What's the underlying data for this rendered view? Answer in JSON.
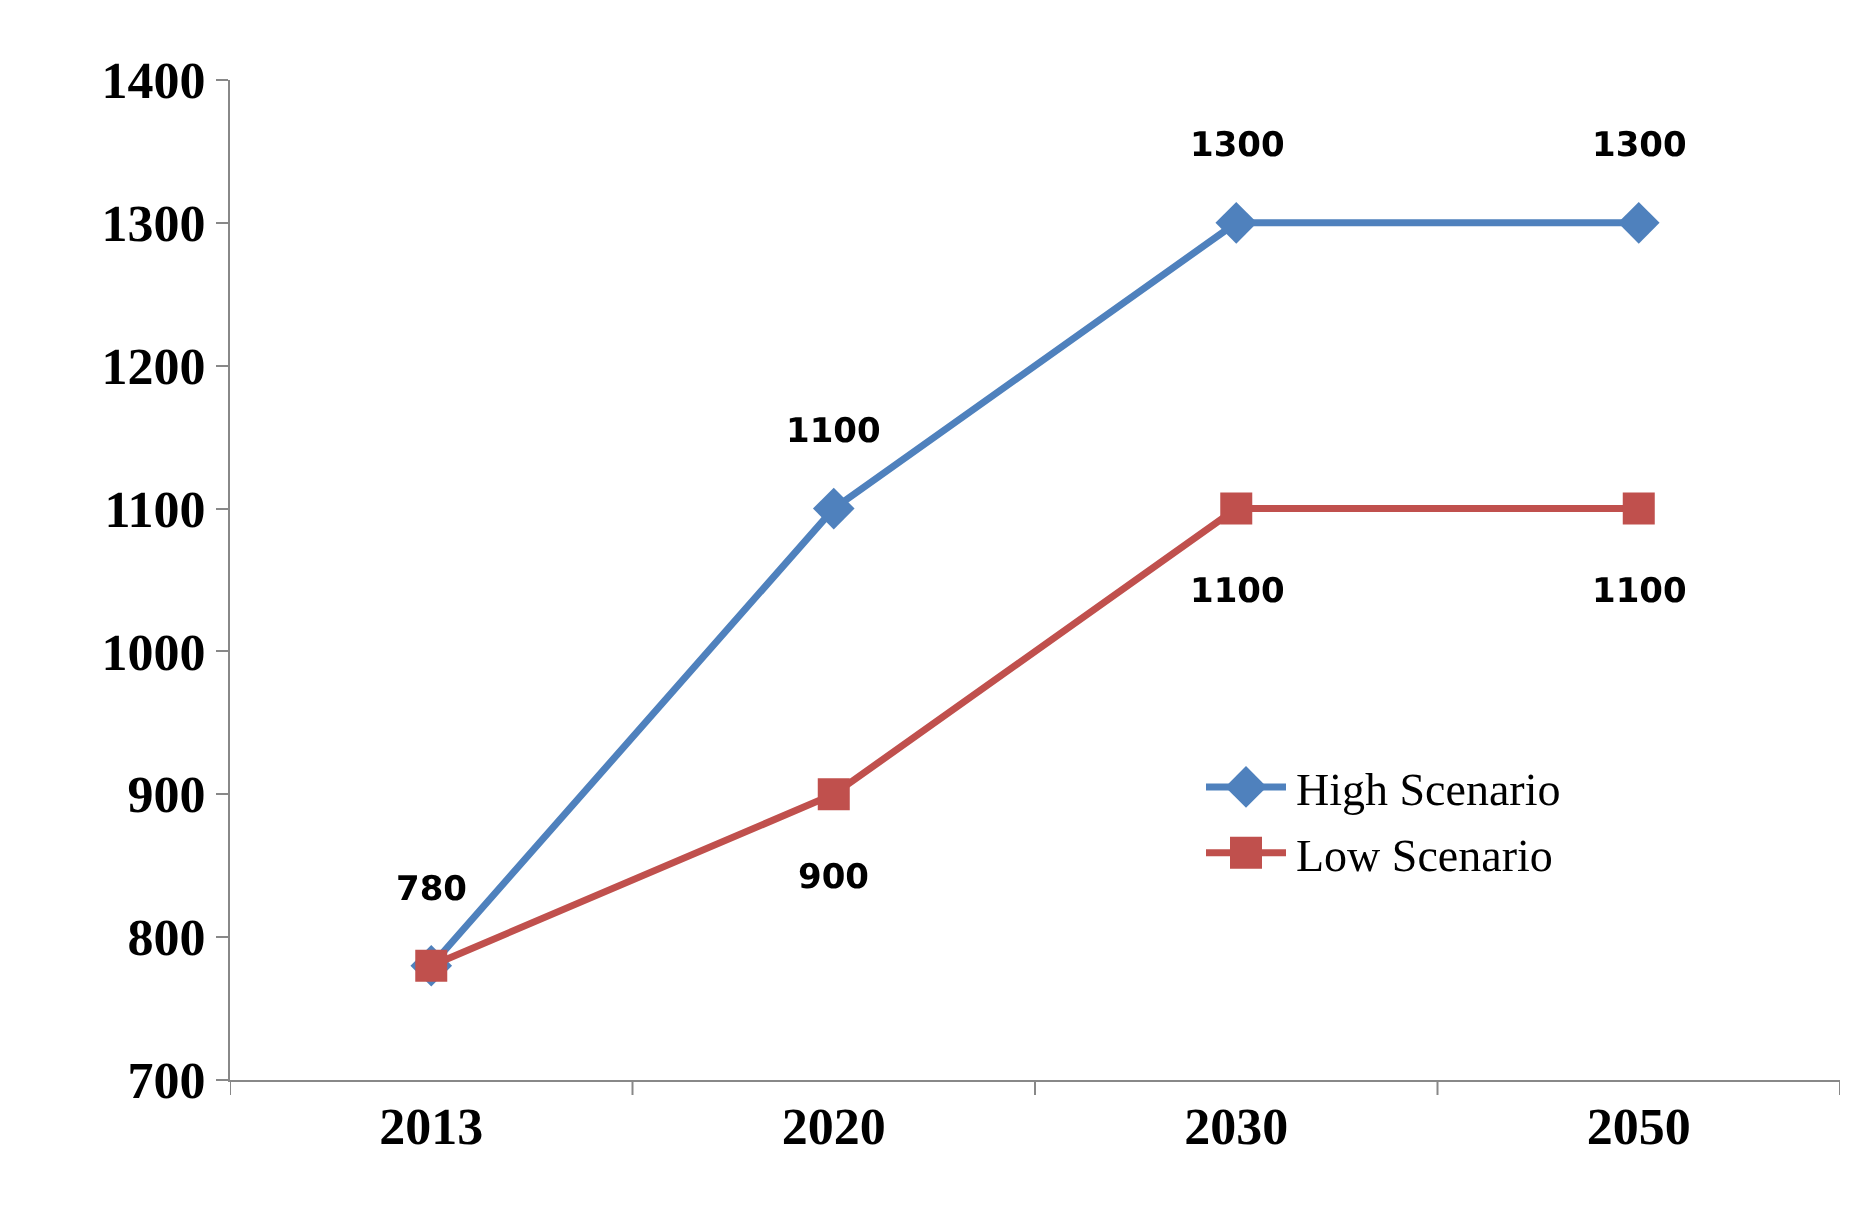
{
  "chart_data": {
    "type": "line",
    "categories": [
      "2013",
      "2020",
      "2030",
      "2050"
    ],
    "series": [
      {
        "name": "High Scenario",
        "color": "#4f81bd",
        "marker": "diamond",
        "values": [
          780,
          1100,
          1300,
          1300
        ],
        "value_labels": [
          "780",
          "1100",
          "1300",
          "1300"
        ]
      },
      {
        "name": "Low Scenario",
        "color": "#c0504d",
        "marker": "square",
        "values": [
          780,
          900,
          1100,
          1100
        ],
        "value_labels": [
          null,
          "900",
          "1100",
          "1100"
        ]
      }
    ],
    "ylim": [
      700,
      1400
    ],
    "yticks": [
      700,
      800,
      900,
      1000,
      1100,
      1200,
      1300,
      1400
    ],
    "legend": "right",
    "line_style": "solid"
  }
}
